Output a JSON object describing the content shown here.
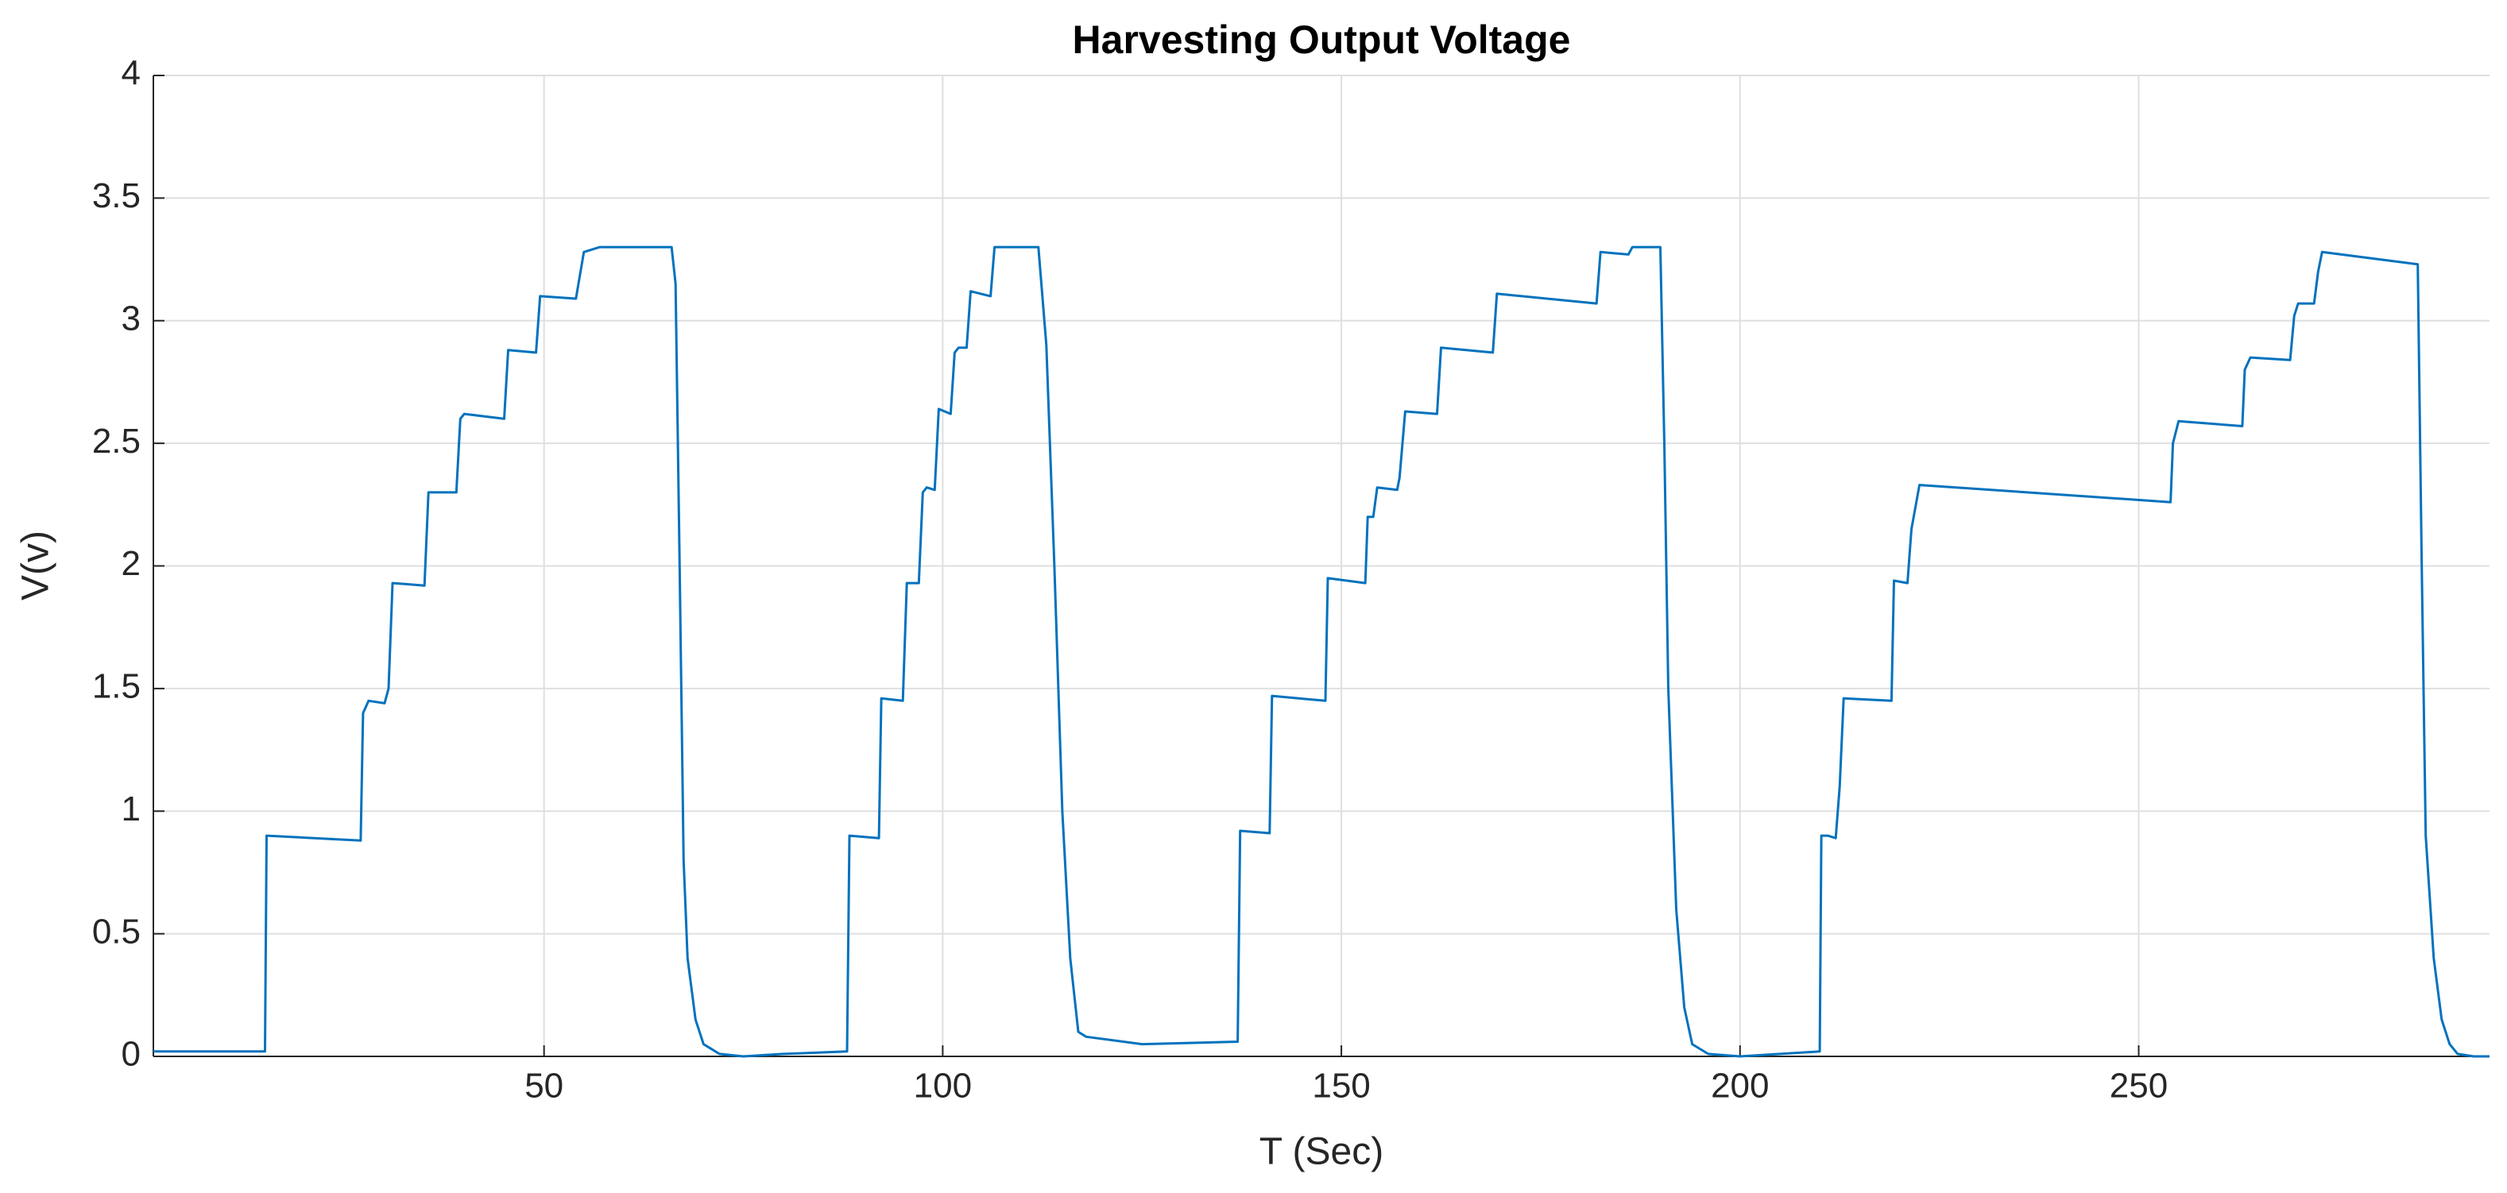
{
  "chart_data": {
    "type": "line",
    "title": "Harvesting Output Voltage",
    "xlabel": "T (Sec)",
    "ylabel": "V(v)",
    "xlim": [
      1,
      294
    ],
    "ylim": [
      0,
      4
    ],
    "xticks": [
      50,
      100,
      150,
      200,
      250
    ],
    "yticks": [
      0,
      0.5,
      1,
      1.5,
      2,
      2.5,
      3,
      3.5,
      4
    ],
    "grid": true,
    "x": [
      1,
      15,
      15.2,
      27,
      27.3,
      28,
      30,
      30.5,
      31,
      35,
      35.5,
      39,
      39.5,
      40,
      45,
      45.5,
      49,
      49.5,
      54,
      55,
      56,
      57,
      66,
      66.5,
      67,
      67.5,
      68,
      69,
      70,
      72,
      75,
      80,
      88,
      88.3,
      92,
      92.3,
      95,
      95.5,
      97,
      97.5,
      98,
      99,
      99.5,
      101,
      101.5,
      102,
      103,
      103.5,
      106,
      106.5,
      112,
      113,
      114,
      115,
      116,
      117,
      118,
      125,
      137,
      137.3,
      141,
      141.3,
      148,
      148.3,
      153,
      153.3,
      154,
      154.5,
      157,
      157.3,
      158,
      162,
      162.5,
      169,
      169.5,
      182,
      182.5,
      186,
      186.5,
      190,
      190.5,
      191,
      192,
      193,
      194,
      196,
      200,
      205,
      210,
      210.2,
      211,
      212,
      212.5,
      213,
      219,
      219.3,
      221,
      221.5,
      222.5,
      254,
      254.3,
      255,
      263,
      263.3,
      264,
      269,
      269.5,
      270,
      272,
      272.5,
      273,
      285,
      285.5,
      286,
      287,
      288,
      289,
      290,
      292,
      294
    ],
    "series": [
      {
        "color": "#0072bd",
        "values": [
          0.02,
          0.02,
          0.9,
          0.88,
          1.4,
          1.45,
          1.44,
          1.5,
          1.93,
          1.92,
          2.3,
          2.3,
          2.6,
          2.62,
          2.6,
          2.88,
          2.87,
          3.1,
          3.09,
          3.28,
          3.29,
          3.3,
          3.3,
          3.15,
          2.0,
          0.8,
          0.4,
          0.15,
          0.05,
          0.01,
          0,
          0.01,
          0.02,
          0.9,
          0.89,
          1.46,
          1.45,
          1.93,
          1.93,
          2.3,
          2.32,
          2.31,
          2.64,
          2.62,
          2.87,
          2.89,
          2.89,
          3.12,
          3.1,
          3.3,
          3.3,
          2.9,
          2.0,
          1.0,
          0.4,
          0.1,
          0.08,
          0.05,
          0.06,
          0.92,
          0.91,
          1.47,
          1.45,
          1.95,
          1.93,
          2.2,
          2.2,
          2.32,
          2.31,
          2.36,
          2.63,
          2.62,
          2.89,
          2.87,
          3.11,
          3.07,
          3.28,
          3.27,
          3.3,
          3.3,
          2.5,
          1.5,
          0.6,
          0.2,
          0.05,
          0.01,
          0,
          0.01,
          0.02,
          0.9,
          0.9,
          0.89,
          1.1,
          1.46,
          1.45,
          1.94,
          1.93,
          2.15,
          2.33,
          2.26,
          2.5,
          2.59,
          2.57,
          2.8,
          2.85,
          2.84,
          3.02,
          3.07,
          3.07,
          3.2,
          3.28,
          3.23,
          2.0,
          0.9,
          0.4,
          0.15,
          0.05,
          0.01,
          0,
          0
        ]
      }
    ]
  }
}
